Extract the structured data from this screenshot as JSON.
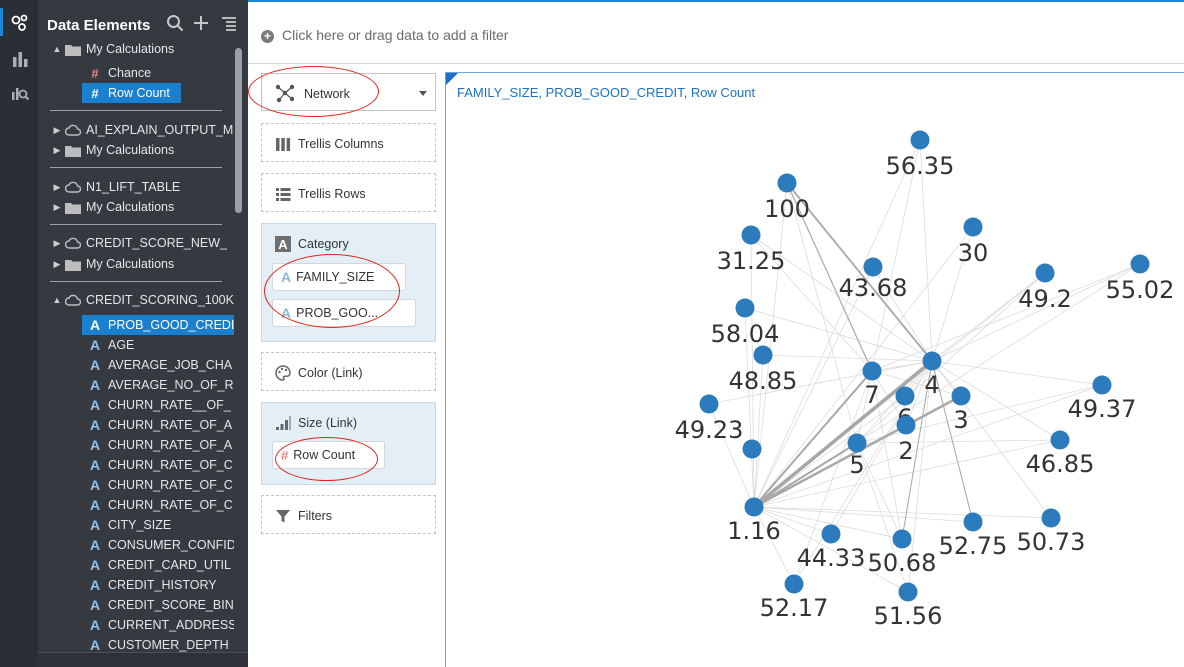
{
  "sidebar_rail": {
    "icons": [
      "data-elements-icon",
      "visualizations-icon",
      "analytics-icon"
    ]
  },
  "data_panel": {
    "title": "Data Elements",
    "tree": [
      {
        "label": "My Calculations",
        "type": "folder",
        "expanded": true
      },
      {
        "label": "Chance",
        "type": "measure"
      },
      {
        "label": "Row Count",
        "type": "measure",
        "selected": true
      },
      {
        "label": "AI_EXPLAIN_OUTPUT_M",
        "type": "dataset"
      },
      {
        "label": "My Calculations",
        "type": "folder"
      },
      {
        "label": "N1_LIFT_TABLE",
        "type": "dataset"
      },
      {
        "label": "My Calculations",
        "type": "folder"
      },
      {
        "label": "CREDIT_SCORE_NEW_",
        "type": "dataset"
      },
      {
        "label": "My Calculations",
        "type": "folder"
      },
      {
        "label": "CREDIT_SCORING_100K",
        "type": "dataset",
        "expanded": true
      },
      {
        "label": "PROB_GOOD_CREDI",
        "type": "attribute",
        "selected": true
      },
      {
        "label": "AGE",
        "type": "attribute"
      },
      {
        "label": "AVERAGE_JOB_CHA",
        "type": "attribute"
      },
      {
        "label": "AVERAGE_NO_OF_R",
        "type": "attribute"
      },
      {
        "label": "CHURN_RATE__OF_",
        "type": "attribute"
      },
      {
        "label": "CHURN_RATE_OF_A",
        "type": "attribute"
      },
      {
        "label": "CHURN_RATE_OF_A",
        "type": "attribute"
      },
      {
        "label": "CHURN_RATE_OF_C",
        "type": "attribute"
      },
      {
        "label": "CHURN_RATE_OF_C",
        "type": "attribute"
      },
      {
        "label": "CHURN_RATE_OF_C",
        "type": "attribute"
      },
      {
        "label": "CITY_SIZE",
        "type": "attribute"
      },
      {
        "label": "CONSUMER_CONFID",
        "type": "attribute"
      },
      {
        "label": "CREDIT_CARD_UTIL",
        "type": "attribute"
      },
      {
        "label": "CREDIT_HISTORY",
        "type": "attribute"
      },
      {
        "label": "CREDIT_SCORE_BIN",
        "type": "attribute"
      },
      {
        "label": "CURRENT_ADDRESS",
        "type": "attribute"
      },
      {
        "label": "CUSTOMER_DEPTH",
        "type": "attribute"
      }
    ]
  },
  "filter_bar": {
    "placeholder": "Click here or drag data to add a filter"
  },
  "grammar": {
    "viz_type": "Network",
    "trellis_columns": "Trellis Columns",
    "trellis_rows": "Trellis Rows",
    "category_label": "Category",
    "category_items": [
      "FAMILY_SIZE",
      "PROB_GOO..."
    ],
    "color_label": "Color (Link)",
    "size_label": "Size (Link)",
    "size_items": [
      "Row Count"
    ],
    "filters_label": "Filters"
  },
  "canvas": {
    "title": "FAMILY_SIZE, PROB_GOOD_CREDIT, Row Count",
    "node_color": "#2b7bbd",
    "nodes": [
      {
        "label": "56.35"
      },
      {
        "label": "100"
      },
      {
        "label": "30"
      },
      {
        "label": "31.25"
      },
      {
        "label": "43.68"
      },
      {
        "label": "49.2"
      },
      {
        "label": "55.02"
      },
      {
        "label": "58.04"
      },
      {
        "label": "48.85"
      },
      {
        "label": "7"
      },
      {
        "label": "4"
      },
      {
        "label": "6"
      },
      {
        "label": "3"
      },
      {
        "label": "49.37"
      },
      {
        "label": "49.23"
      },
      {
        "label": "2"
      },
      {
        "label": "5"
      },
      {
        "label": "46.85"
      },
      {
        "label": ""
      },
      {
        "label": "1.16"
      },
      {
        "label": "44.33"
      },
      {
        "label": "50.68"
      },
      {
        "label": "52.75"
      },
      {
        "label": "50.73"
      },
      {
        "label": "52.17"
      },
      {
        "label": "51.56"
      }
    ]
  }
}
